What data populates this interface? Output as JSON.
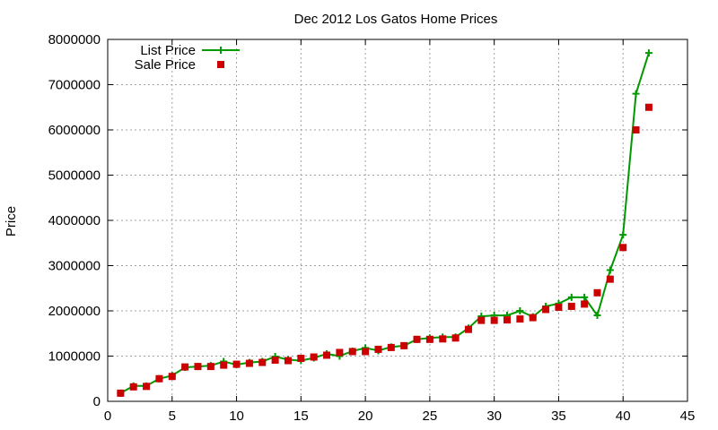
{
  "chart_data": {
    "type": "line",
    "title": "Dec 2012 Los Gatos Home Prices",
    "xlabel": "",
    "ylabel": "Price",
    "xlim": [
      0,
      45
    ],
    "ylim": [
      0,
      8000000
    ],
    "grid": true,
    "legend_position": "top-left",
    "x_ticks": [
      "0",
      "5",
      "10",
      "15",
      "20",
      "25",
      "30",
      "35",
      "40",
      "45"
    ],
    "y_ticks": [
      "0",
      "1000000",
      "2000000",
      "3000000",
      "4000000",
      "5000000",
      "6000000",
      "7000000",
      "8000000"
    ],
    "x": [
      1,
      2,
      3,
      4,
      5,
      6,
      7,
      8,
      9,
      10,
      11,
      12,
      13,
      14,
      15,
      16,
      17,
      18,
      19,
      20,
      21,
      22,
      23,
      24,
      25,
      26,
      27,
      28,
      29,
      30,
      31,
      32,
      33,
      34,
      35,
      36,
      37,
      38,
      39,
      40,
      41,
      42
    ],
    "series": [
      {
        "name": "List Price",
        "style": "line+cross",
        "color": "#009900",
        "values": [
          180000,
          340000,
          340000,
          500000,
          570000,
          750000,
          770000,
          790000,
          880000,
          810000,
          860000,
          880000,
          990000,
          920000,
          900000,
          960000,
          1050000,
          1000000,
          1110000,
          1180000,
          1120000,
          1200000,
          1230000,
          1370000,
          1400000,
          1420000,
          1420000,
          1620000,
          1880000,
          1900000,
          1900000,
          2000000,
          1870000,
          2100000,
          2160000,
          2300000,
          2300000,
          1900000,
          2900000,
          3680000,
          6800000,
          7700000
        ]
      },
      {
        "name": "Sale Price",
        "style": "square",
        "color": "#cc0000",
        "values": [
          180000,
          320000,
          330000,
          500000,
          550000,
          760000,
          770000,
          770000,
          800000,
          820000,
          840000,
          860000,
          910000,
          900000,
          950000,
          980000,
          1020000,
          1080000,
          1100000,
          1100000,
          1150000,
          1190000,
          1230000,
          1370000,
          1370000,
          1380000,
          1400000,
          1590000,
          1790000,
          1790000,
          1800000,
          1820000,
          1850000,
          2030000,
          2080000,
          2100000,
          2150000,
          2400000,
          2700000,
          3400000,
          6000000,
          6500000
        ]
      }
    ]
  }
}
